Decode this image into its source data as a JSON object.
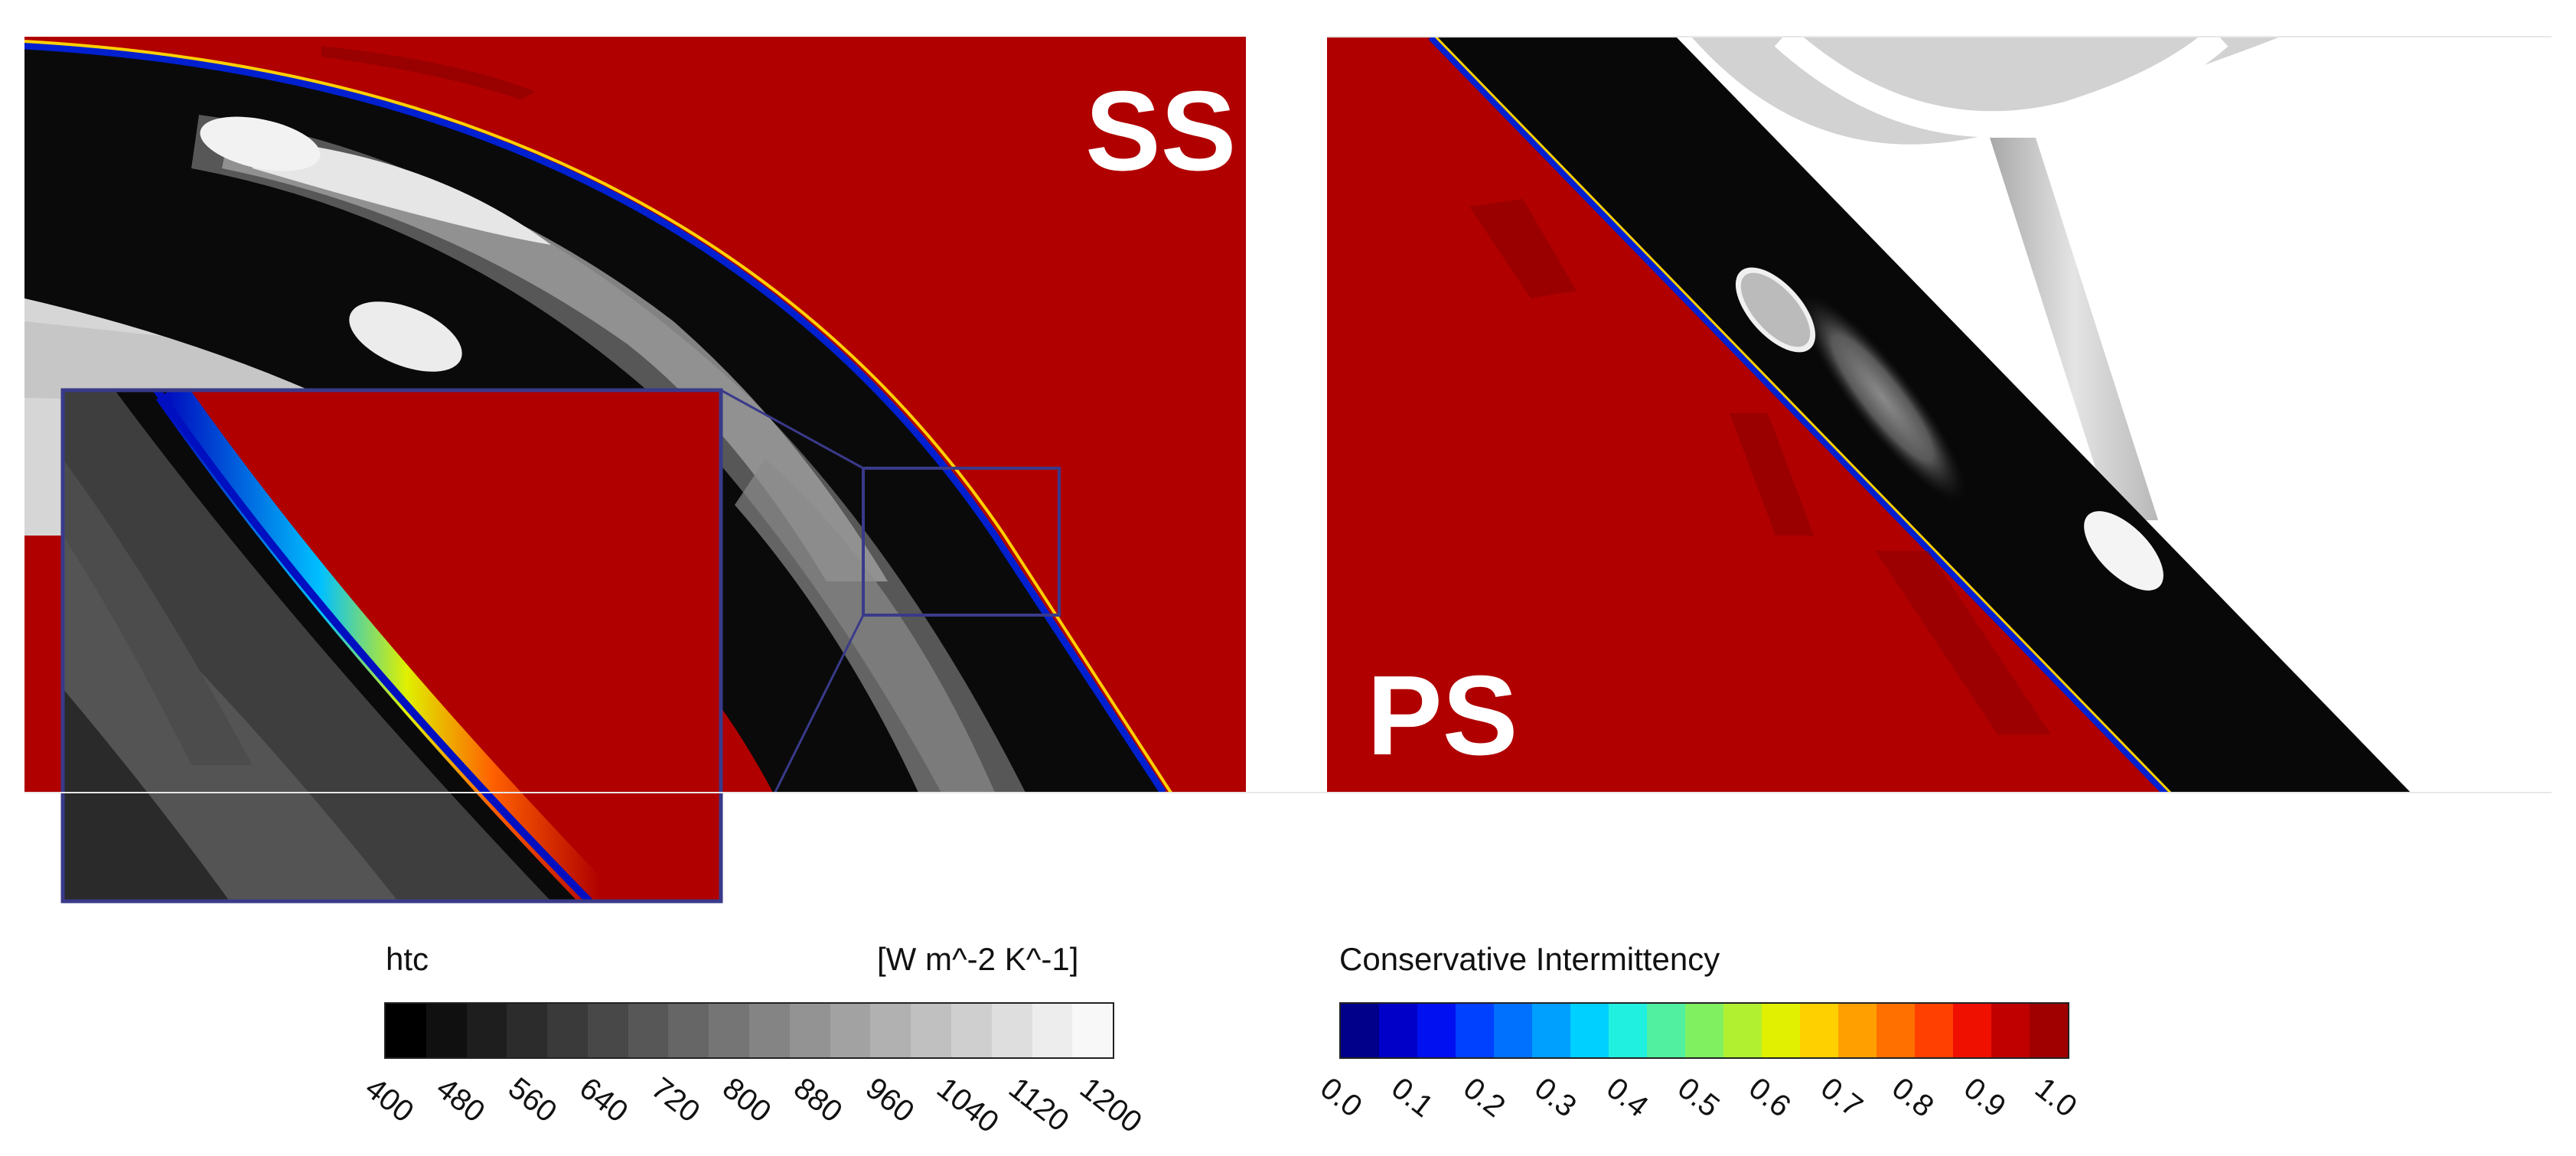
{
  "panels": {
    "left_label": "SS",
    "right_label": "PS"
  },
  "legend_htc": {
    "title": "htc",
    "unit": "[W m^-2 K^-1]",
    "ticks": [
      "400",
      "480",
      "560",
      "640",
      "720",
      "800",
      "880",
      "960",
      "1040",
      "1120",
      "1200"
    ],
    "colors": [
      "#000000",
      "#101010",
      "#1e1e1e",
      "#2c2c2c",
      "#3a3a3a",
      "#484848",
      "#575757",
      "#666666",
      "#757575",
      "#848484",
      "#939393",
      "#a2a2a2",
      "#b1b1b1",
      "#c0c0c0",
      "#cfcfcf",
      "#dedede",
      "#ededed",
      "#f8f8f8"
    ]
  },
  "legend_intermittency": {
    "title": "Conservative Intermittency",
    "ticks": [
      "0.0",
      "0.1",
      "0.2",
      "0.3",
      "0.4",
      "0.5",
      "0.6",
      "0.7",
      "0.8",
      "0.9",
      "1.0"
    ],
    "colors": [
      "#00008b",
      "#0000c8",
      "#0010f0",
      "#0040ff",
      "#0070ff",
      "#00a0ff",
      "#00d0ff",
      "#20f0e0",
      "#50f0a0",
      "#80f060",
      "#b0f030",
      "#e0f000",
      "#ffd000",
      "#ffa000",
      "#ff7000",
      "#ff4000",
      "#f01000",
      "#c00000",
      "#a00000"
    ]
  },
  "colors": {
    "background_flow": "#b00000",
    "blade_dark": "#080808",
    "inset_border": "#3a3a8a"
  }
}
